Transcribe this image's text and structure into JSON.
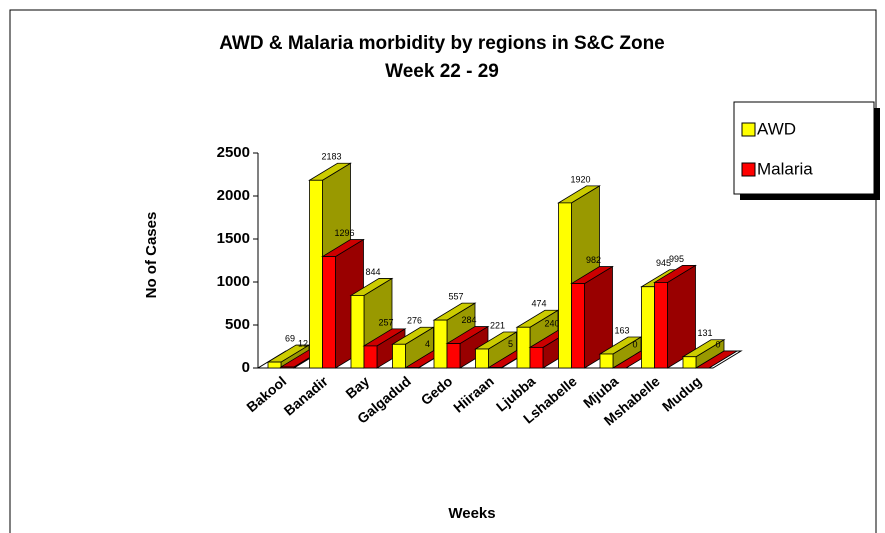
{
  "chart_data": {
    "type": "bar3d",
    "title": "AWD & Malaria morbidity by regions in S&C Zone",
    "subtitle": "Week 22 - 29",
    "x_label": "Weeks",
    "y_label": "No of Cases",
    "categories": [
      "Bakool",
      "Banadir",
      "Bay",
      "Galgadud",
      "Gedo",
      "Hiiraan",
      "Ljubba",
      "Lshabelle",
      "Mjuba",
      "Mshabelle",
      "Mudug"
    ],
    "series": [
      {
        "name": "AWD",
        "color": "#ffff00",
        "values": [
          69,
          2183,
          844,
          276,
          557,
          221,
          474,
          1920,
          163,
          945,
          131
        ]
      },
      {
        "name": "Malaria",
        "color": "#ff0000",
        "values": [
          12,
          1296,
          257,
          4,
          284,
          5,
          240,
          982,
          0,
          995,
          0
        ]
      }
    ],
    "ylim": [
      0,
      2500
    ],
    "yticks": [
      0,
      500,
      1000,
      1500,
      2000,
      2500
    ],
    "legend": "right"
  }
}
